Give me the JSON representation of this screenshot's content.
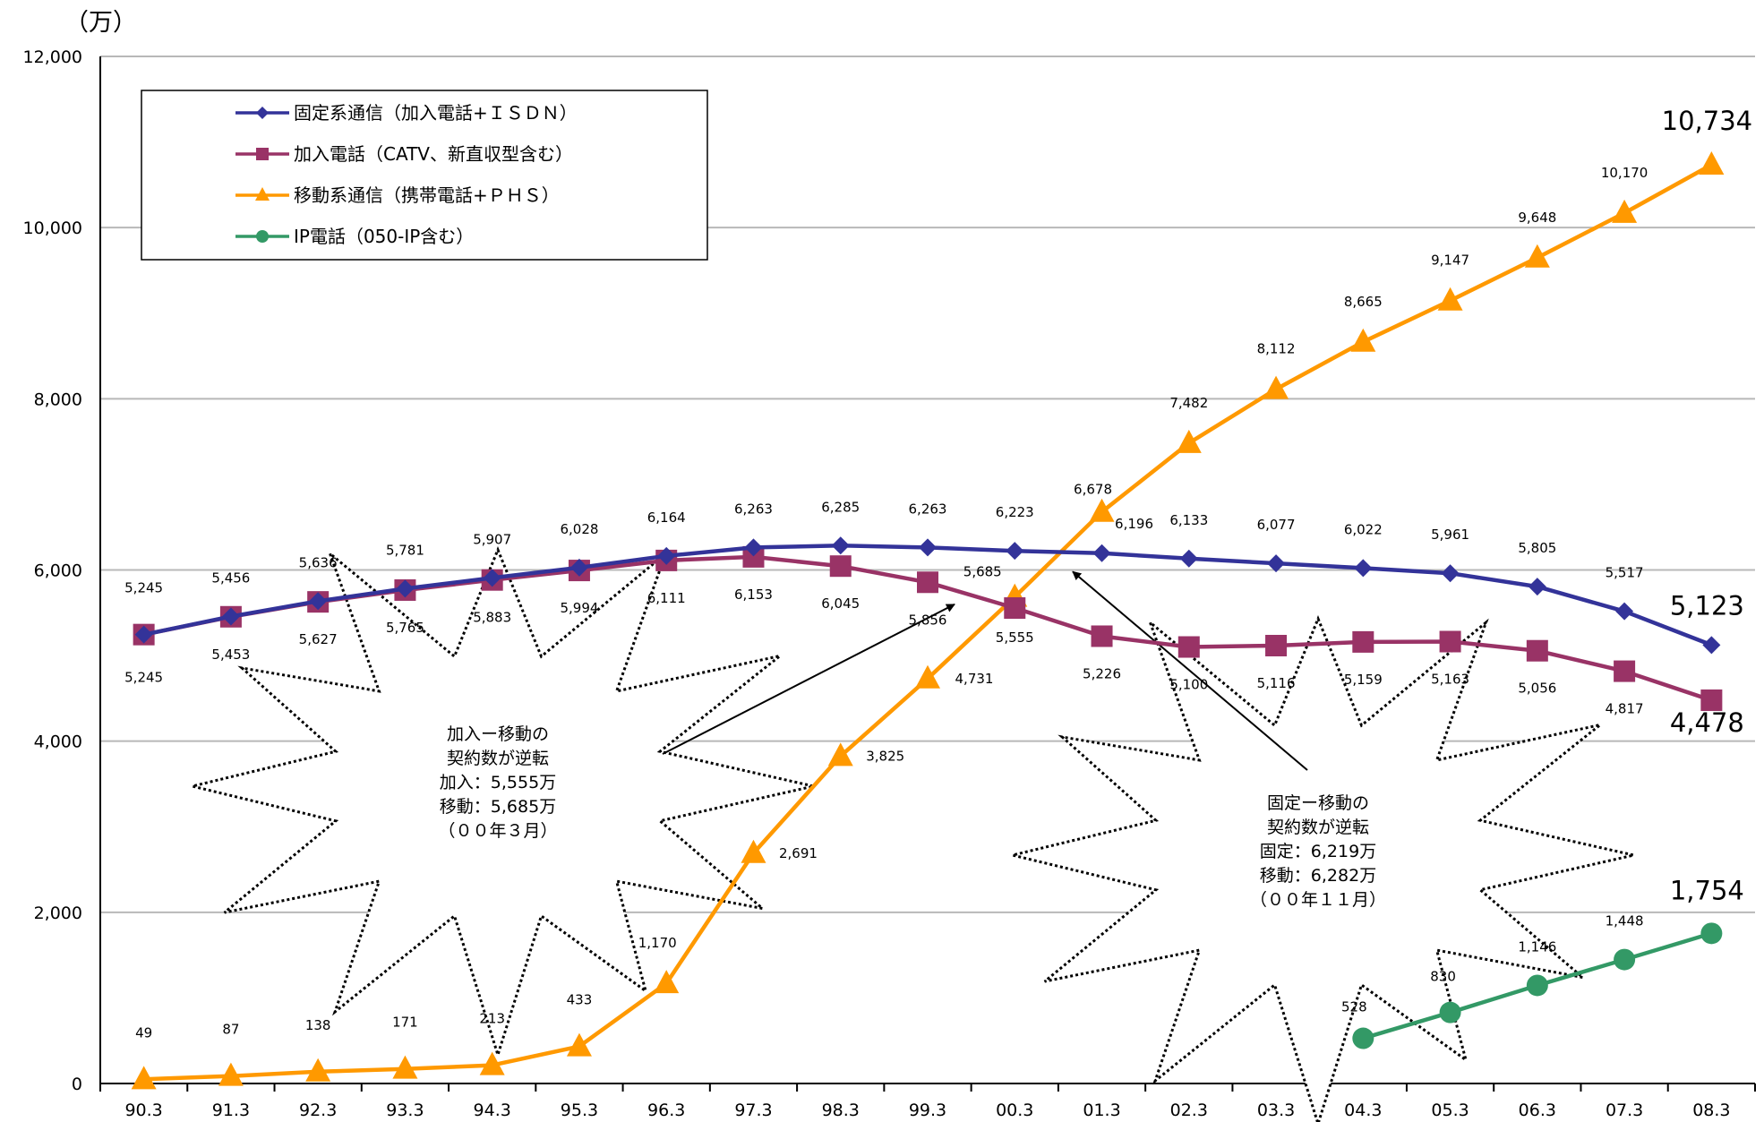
{
  "chart_data": {
    "type": "line",
    "unit_label": "（万）",
    "categories": [
      "90.3",
      "91.3",
      "92.3",
      "93.3",
      "94.3",
      "95.3",
      "96.3",
      "97.3",
      "98.3",
      "99.3",
      "00.3",
      "01.3",
      "02.3",
      "03.3",
      "04.3",
      "05.3",
      "06.3",
      "07.3",
      "08.3"
    ],
    "ylim": [
      0,
      12000
    ],
    "yticks": [
      "0",
      "2,000",
      "4,000",
      "6,000",
      "8,000",
      "10,000",
      "12,000"
    ],
    "grid": true,
    "legend_position": "top-left",
    "series": [
      {
        "name": "固定系通信（加入電話+ＩＳＤＮ）",
        "color": "#333399",
        "marker": "diamond",
        "values": [
          5245,
          5456,
          5636,
          5781,
          5907,
          6028,
          6164,
          6263,
          6285,
          6263,
          6223,
          6196,
          6133,
          6077,
          6022,
          5961,
          5805,
          5517,
          5123
        ],
        "labels": [
          "5,245",
          "5,456",
          "5,636",
          "5,781",
          "5,907",
          "6,028",
          "6,164",
          "6,263",
          "6,285",
          "6,263",
          "6,223",
          "6,196",
          "6,133",
          "6,077",
          "6,022",
          "5,961",
          "5,805",
          "5,517",
          "5,123"
        ]
      },
      {
        "name": "加入電話（CATV、新直収型含む）",
        "color": "#993366",
        "marker": "square",
        "values": [
          5245,
          5453,
          5627,
          5765,
          5883,
          5994,
          6111,
          6153,
          6045,
          5856,
          5555,
          5226,
          5100,
          5116,
          5159,
          5163,
          5056,
          4817,
          4478
        ],
        "labels": [
          "5,245",
          "5,453",
          "5,627",
          "5,765",
          "5,883",
          "5,994",
          "6,111",
          "6,153",
          "6,045",
          "5,856",
          "5,555",
          "5,226",
          "5,100",
          "5,116",
          "5,159",
          "5,163",
          "5,056",
          "4,817",
          "4,478"
        ]
      },
      {
        "name": "移動系通信（携帯電話+ＰＨＳ）",
        "color": "#FF9900",
        "marker": "triangle",
        "values": [
          49,
          87,
          138,
          171,
          213,
          433,
          1170,
          2691,
          3825,
          4731,
          5685,
          6678,
          7482,
          8112,
          8665,
          9147,
          9648,
          10170,
          10734
        ],
        "labels": [
          "49",
          "87",
          "138",
          "171",
          "213",
          "433",
          "1,170",
          "2,691",
          "3,825",
          "4,731",
          "5,685",
          "6,678",
          "7,482",
          "8,112",
          "8,665",
          "9,147",
          "9,648",
          "10,170",
          "10,734"
        ]
      },
      {
        "name": "IP電話（050-IP含む）",
        "color": "#339966",
        "marker": "circle",
        "values": [
          null,
          null,
          null,
          null,
          null,
          null,
          null,
          null,
          null,
          null,
          null,
          null,
          null,
          null,
          528,
          830,
          1146,
          1448,
          1754
        ],
        "labels": [
          null,
          null,
          null,
          null,
          null,
          null,
          null,
          null,
          null,
          null,
          null,
          null,
          null,
          null,
          "528",
          "830",
          "1,146",
          "1,448",
          "1,754"
        ]
      }
    ],
    "annotations": [
      {
        "lines": [
          "加入ー移動の",
          "契約数が逆転",
          "加入：5,555万",
          "移動：5,685万",
          "（００年３月）"
        ]
      },
      {
        "lines": [
          "固定ー移動の",
          "契約数が逆転",
          "固定：6,219万",
          "移動：6,282万",
          "（００年１１月）"
        ]
      }
    ]
  }
}
